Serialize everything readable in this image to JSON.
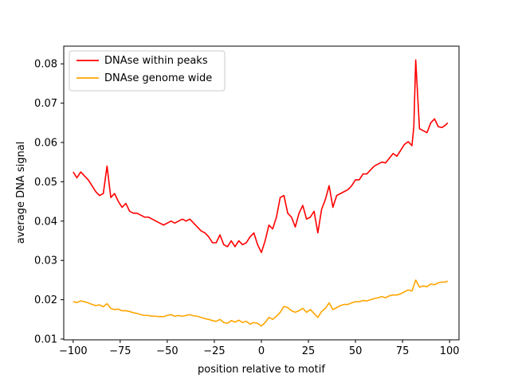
{
  "chart_data": {
    "type": "line",
    "title": "",
    "xlabel": "position relative to motif",
    "ylabel": "average DNA signal",
    "xlim": [
      -105,
      105
    ],
    "ylim": [
      0.0098,
      0.0845
    ],
    "xticks": [
      -100,
      -75,
      -50,
      -25,
      0,
      25,
      50,
      75,
      100
    ],
    "xtick_labels": [
      "−100",
      "−75",
      "−50",
      "−25",
      "0",
      "25",
      "50",
      "75",
      "100"
    ],
    "yticks": [
      0.01,
      0.02,
      0.03,
      0.04,
      0.05,
      0.06,
      0.07,
      0.08
    ],
    "ytick_labels": [
      "0.01",
      "0.02",
      "0.03",
      "0.04",
      "0.05",
      "0.06",
      "0.07",
      "0.08"
    ],
    "grid": false,
    "legend_position": "top-left",
    "series": [
      {
        "name": "DNAse within peaks",
        "color": "#ff0000",
        "x": [
          -100,
          -98,
          -96,
          -94,
          -92,
          -90,
          -88,
          -86,
          -84,
          -82,
          -80,
          -78,
          -76,
          -74,
          -72,
          -70,
          -68,
          -66,
          -64,
          -62,
          -60,
          -58,
          -56,
          -54,
          -52,
          -50,
          -48,
          -46,
          -44,
          -42,
          -40,
          -38,
          -36,
          -34,
          -32,
          -30,
          -28,
          -26,
          -24,
          -22,
          -20,
          -18,
          -16,
          -14,
          -12,
          -10,
          -8,
          -6,
          -4,
          -2,
          0,
          2,
          4,
          6,
          8,
          10,
          12,
          14,
          16,
          18,
          20,
          22,
          24,
          26,
          28,
          30,
          32,
          34,
          36,
          38,
          40,
          42,
          44,
          46,
          48,
          50,
          52,
          54,
          56,
          58,
          60,
          62,
          64,
          66,
          68,
          70,
          72,
          74,
          76,
          78,
          80,
          81,
          82,
          84,
          86,
          88,
          90,
          92,
          94,
          96,
          98,
          99
        ],
        "y": [
          0.0525,
          0.051,
          0.0525,
          0.0515,
          0.0505,
          0.049,
          0.0475,
          0.0465,
          0.047,
          0.054,
          0.046,
          0.047,
          0.045,
          0.0435,
          0.0445,
          0.0425,
          0.042,
          0.042,
          0.0415,
          0.041,
          0.041,
          0.0405,
          0.04,
          0.0395,
          0.039,
          0.0395,
          0.04,
          0.0395,
          0.04,
          0.0405,
          0.04,
          0.0405,
          0.0395,
          0.0385,
          0.0375,
          0.037,
          0.036,
          0.0345,
          0.0345,
          0.0365,
          0.034,
          0.0335,
          0.035,
          0.0335,
          0.035,
          0.034,
          0.0345,
          0.036,
          0.037,
          0.034,
          0.032,
          0.035,
          0.039,
          0.038,
          0.041,
          0.046,
          0.0465,
          0.042,
          0.041,
          0.0385,
          0.042,
          0.044,
          0.0405,
          0.041,
          0.0425,
          0.037,
          0.043,
          0.0455,
          0.049,
          0.0435,
          0.0465,
          0.047,
          0.0475,
          0.048,
          0.049,
          0.0505,
          0.0505,
          0.052,
          0.052,
          0.053,
          0.054,
          0.0545,
          0.055,
          0.0548,
          0.056,
          0.0572,
          0.0565,
          0.058,
          0.0595,
          0.0602,
          0.0592,
          0.064,
          0.081,
          0.0635,
          0.063,
          0.0625,
          0.065,
          0.066,
          0.064,
          0.0638,
          0.0645,
          0.065
        ]
      },
      {
        "name": "DNAse genome wide",
        "color": "#ffa500",
        "x": [
          -100,
          -98,
          -96,
          -94,
          -92,
          -90,
          -88,
          -86,
          -84,
          -82,
          -80,
          -78,
          -76,
          -74,
          -72,
          -70,
          -68,
          -66,
          -64,
          -62,
          -60,
          -58,
          -56,
          -54,
          -52,
          -50,
          -48,
          -46,
          -44,
          -42,
          -40,
          -38,
          -36,
          -34,
          -32,
          -30,
          -28,
          -26,
          -24,
          -22,
          -20,
          -18,
          -16,
          -14,
          -12,
          -10,
          -8,
          -6,
          -4,
          -2,
          0,
          2,
          4,
          6,
          8,
          10,
          12,
          14,
          16,
          18,
          20,
          22,
          24,
          26,
          28,
          30,
          32,
          34,
          36,
          38,
          40,
          42,
          44,
          46,
          48,
          50,
          52,
          54,
          56,
          58,
          60,
          62,
          64,
          66,
          68,
          70,
          72,
          74,
          76,
          78,
          80,
          82,
          84,
          86,
          88,
          90,
          92,
          94,
          96,
          98,
          99
        ],
        "y": [
          0.0195,
          0.0193,
          0.0197,
          0.0195,
          0.0192,
          0.0188,
          0.0185,
          0.0187,
          0.0182,
          0.019,
          0.0178,
          0.0175,
          0.0176,
          0.0172,
          0.0172,
          0.017,
          0.0167,
          0.0165,
          0.0162,
          0.016,
          0.016,
          0.0158,
          0.0158,
          0.0157,
          0.0157,
          0.016,
          0.0162,
          0.0158,
          0.016,
          0.0158,
          0.016,
          0.0162,
          0.0159,
          0.0158,
          0.0155,
          0.0152,
          0.015,
          0.0147,
          0.0145,
          0.015,
          0.0142,
          0.014,
          0.0147,
          0.0143,
          0.0148,
          0.0142,
          0.0145,
          0.0138,
          0.0142,
          0.014,
          0.0133,
          0.0142,
          0.0155,
          0.015,
          0.0158,
          0.0168,
          0.0183,
          0.018,
          0.0172,
          0.0168,
          0.0172,
          0.0178,
          0.0168,
          0.0175,
          0.0165,
          0.0155,
          0.017,
          0.0178,
          0.0192,
          0.0175,
          0.018,
          0.0185,
          0.0188,
          0.0188,
          0.0192,
          0.0195,
          0.0195,
          0.0198,
          0.0197,
          0.02,
          0.0203,
          0.0205,
          0.0208,
          0.0205,
          0.021,
          0.0212,
          0.0212,
          0.0215,
          0.022,
          0.0225,
          0.0222,
          0.025,
          0.0232,
          0.0235,
          0.0233,
          0.024,
          0.0238,
          0.0243,
          0.0245,
          0.0245,
          0.0248
        ]
      }
    ]
  }
}
